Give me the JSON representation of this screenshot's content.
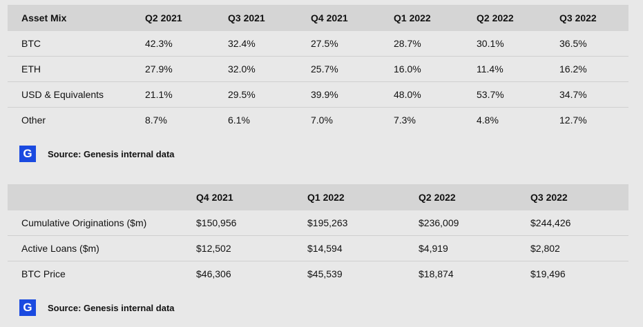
{
  "table1": {
    "headers": [
      "Asset Mix",
      "Q2 2021",
      "Q3 2021",
      "Q4 2021",
      "Q1 2022",
      "Q2 2022",
      "Q3 2022"
    ],
    "rows": [
      [
        "BTC",
        "42.3%",
        "32.4%",
        "27.5%",
        "28.7%",
        "30.1%",
        "36.5%"
      ],
      [
        "ETH",
        "27.9%",
        "32.0%",
        "25.7%",
        "16.0%",
        "11.4%",
        "16.2%"
      ],
      [
        "USD & Equivalents",
        "21.1%",
        "29.5%",
        "39.9%",
        "48.0%",
        "53.7%",
        "34.7%"
      ],
      [
        "Other",
        "8.7%",
        "6.1%",
        "7.0%",
        "7.3%",
        "4.8%",
        "12.7%"
      ]
    ],
    "source": "Source: Genesis internal data"
  },
  "table2": {
    "headers": [
      "",
      "Q4 2021",
      "Q1 2022",
      "Q2 2022",
      "Q3 2022"
    ],
    "rows": [
      [
        "Cumulative Originations ($m)",
        "$150,956",
        "$195,263",
        "$236,009",
        "$244,426"
      ],
      [
        "Active Loans ($m)",
        "$12,502",
        "$14,594",
        "$4,919",
        "$2,802"
      ],
      [
        "BTC Price",
        "$46,306",
        "$45,539",
        "$18,874",
        "$19,496"
      ]
    ],
    "source": "Source: Genesis internal data"
  },
  "logo": {
    "letter": "G",
    "color": "#1a4ae0"
  }
}
